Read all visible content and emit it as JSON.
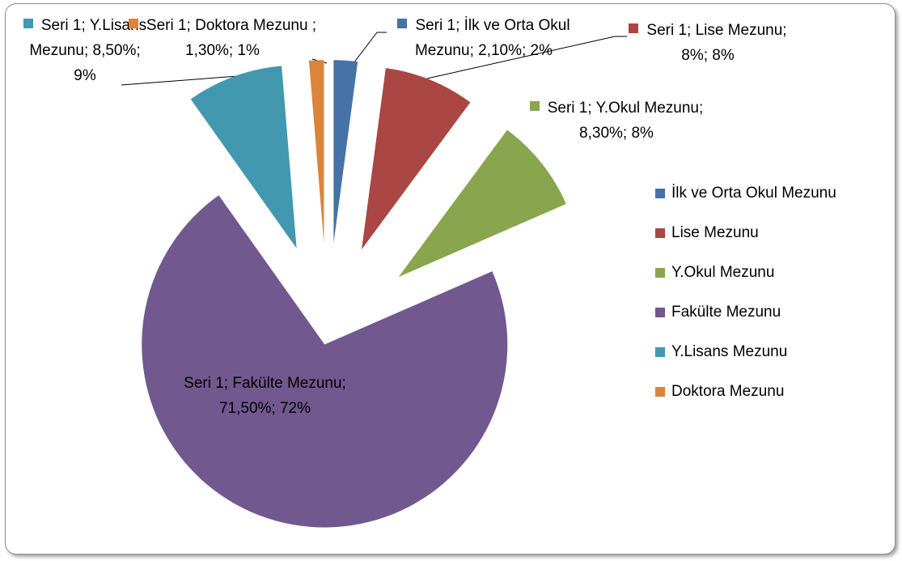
{
  "chart_data": {
    "type": "pie",
    "series_name": "Seri 1",
    "categories": [
      "İlk ve Orta Okul Mezunu",
      "Lise Mezunu",
      "Y.Okul Mezunu",
      "Fakülte Mezunu",
      "Y.Lisans Mezunu",
      "Doktora Mezunu"
    ],
    "values": [
      2.1,
      8,
      8.3,
      71.5,
      8.5,
      1.3
    ],
    "value_labels": [
      "Seri 1; İlk ve Orta Okul Mezunu; 2,10%; 2%",
      "Seri 1; Lise Mezunu; 8%; 8%",
      "Seri 1; Y.Okul Mezunu; 8,30%; 8%",
      "Seri 1; Fakülte Mezunu; 71,50%; 72%",
      "Seri 1; Y.Lisans Mezunu; 8,50%; 9%",
      "Seri 1; Doktora Mezunu ; 1,30%; 1%"
    ],
    "colors": [
      "#4572a7",
      "#aa4643",
      "#89a54e",
      "#71588f",
      "#4198af",
      "#db843d"
    ],
    "legend": "right"
  }
}
